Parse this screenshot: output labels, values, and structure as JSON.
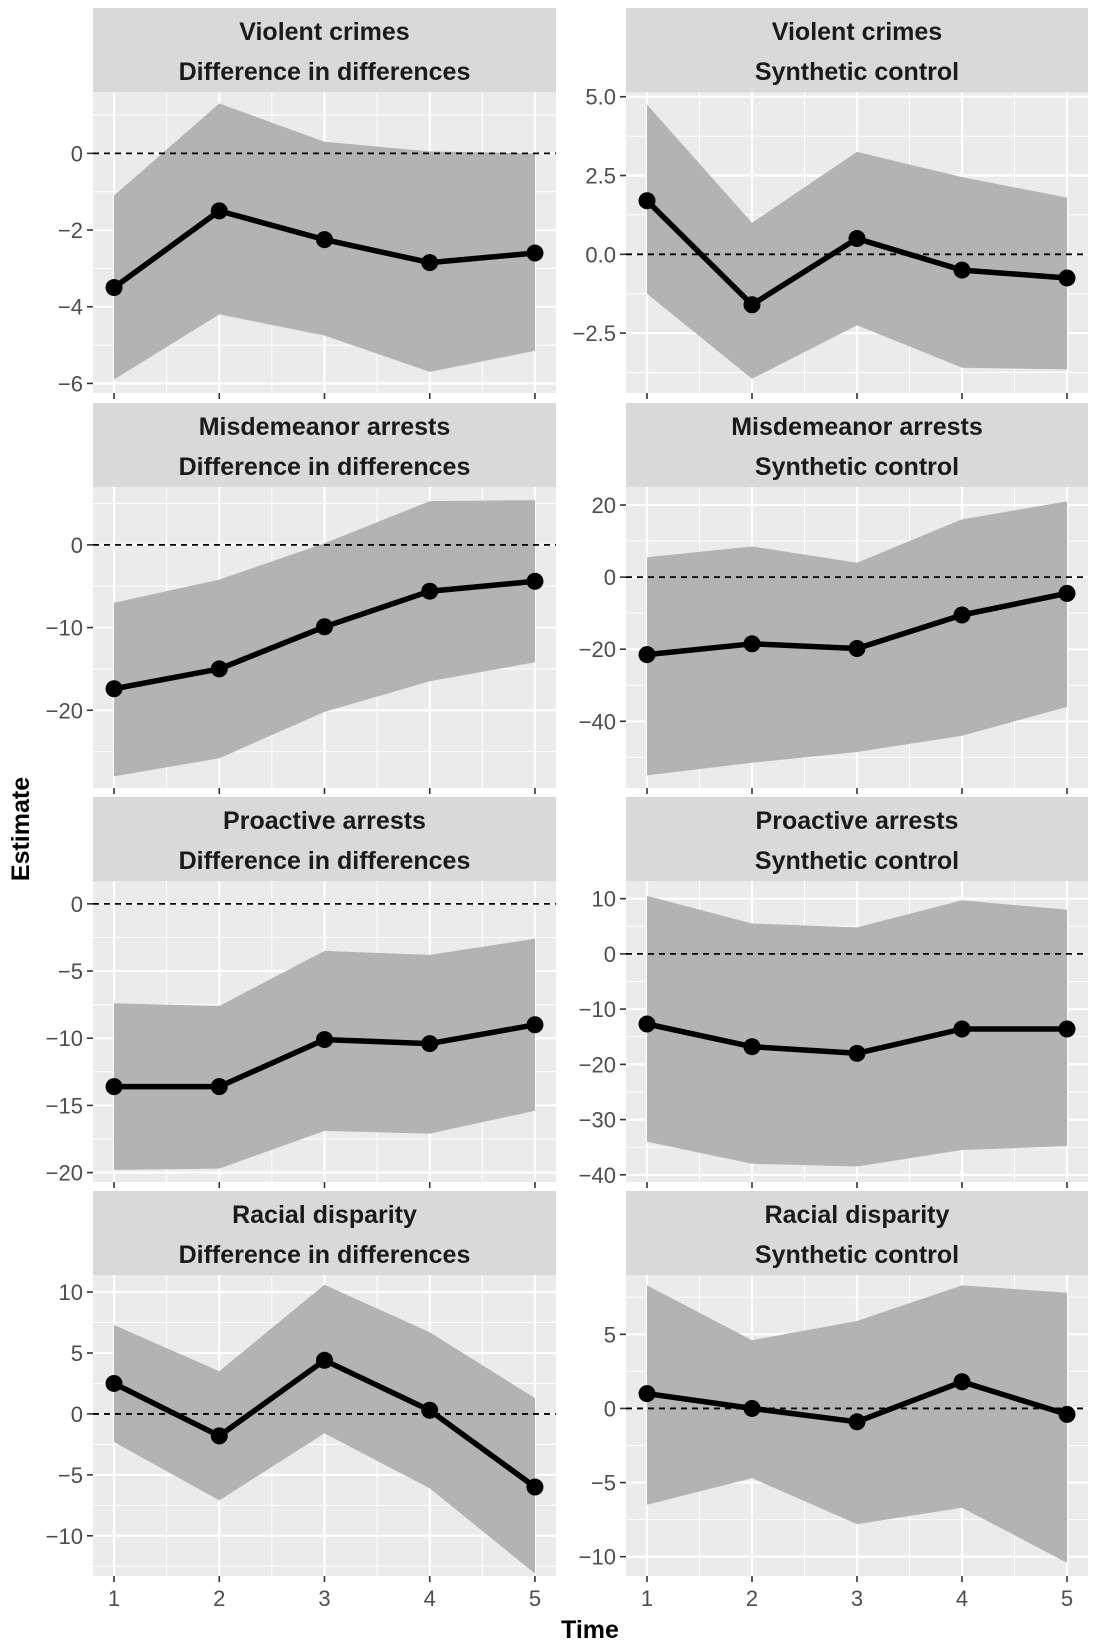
{
  "figure": {
    "xlabel": "Time",
    "ylabel": "Estimate"
  },
  "chart_data": [
    {
      "type": "line",
      "title": "Violent crimes",
      "subtitle": "Difference in differences",
      "x": [
        1,
        2,
        3,
        4,
        5
      ],
      "estimate": [
        -3.5,
        -1.5,
        -2.25,
        -2.85,
        -2.6
      ],
      "ci_lower": [
        -5.9,
        -4.2,
        -4.75,
        -5.7,
        -5.15
      ],
      "ci_upper": [
        -1.1,
        1.3,
        0.3,
        0.05,
        0.0
      ],
      "ylim": [
        -6.25,
        1.6
      ],
      "yticks": [
        0,
        -2,
        -4,
        -6
      ],
      "ytick_labels": [
        "0",
        "−2",
        "−4",
        "−6"
      ],
      "reference_line": 0
    },
    {
      "type": "line",
      "title": "Violent crimes",
      "subtitle": "Synthetic control",
      "x": [
        1,
        2,
        3,
        4,
        5
      ],
      "estimate": [
        1.7,
        -1.6,
        0.5,
        -0.5,
        -0.75
      ],
      "ci_lower": [
        -1.25,
        -3.95,
        -2.25,
        -3.6,
        -3.65
      ],
      "ci_upper": [
        4.75,
        1.0,
        3.25,
        2.45,
        1.8
      ],
      "ylim": [
        -4.4,
        5.15
      ],
      "yticks": [
        5.0,
        2.5,
        0.0,
        -2.5
      ],
      "ytick_labels": [
        "5.0",
        "2.5",
        "0.0",
        "−2.5"
      ],
      "reference_line": 0
    },
    {
      "type": "line",
      "title": "Misdemeanor arrests",
      "subtitle": "Difference in differences",
      "x": [
        1,
        2,
        3,
        4,
        5
      ],
      "estimate": [
        -17.4,
        -15.0,
        -9.9,
        -5.6,
        -4.4
      ],
      "ci_lower": [
        -28.0,
        -25.8,
        -20.2,
        -16.5,
        -14.2
      ],
      "ci_upper": [
        -7.0,
        -4.2,
        0.2,
        5.3,
        5.4
      ],
      "ylim": [
        -29.4,
        7.0
      ],
      "yticks": [
        0,
        -10,
        -20
      ],
      "ytick_labels": [
        "0",
        "−10",
        "−20"
      ],
      "reference_line": 0
    },
    {
      "type": "line",
      "title": "Misdemeanor arrests",
      "subtitle": "Synthetic control",
      "x": [
        1,
        2,
        3,
        4,
        5
      ],
      "estimate": [
        -21.5,
        -18.5,
        -19.8,
        -10.5,
        -4.5
      ],
      "ci_lower": [
        -55.0,
        -51.5,
        -48.5,
        -44.0,
        -36.0
      ],
      "ci_upper": [
        5.5,
        8.5,
        4.0,
        16.0,
        21.0
      ],
      "ylim": [
        -58.5,
        25.0
      ],
      "yticks": [
        20,
        0,
        -20,
        -40
      ],
      "ytick_labels": [
        "20",
        "0",
        "−20",
        "−40"
      ],
      "reference_line": 0
    },
    {
      "type": "line",
      "title": "Proactive arrests",
      "subtitle": "Difference in differences",
      "x": [
        1,
        2,
        3,
        4,
        5
      ],
      "estimate": [
        -13.6,
        -13.6,
        -10.1,
        -10.4,
        -9.0
      ],
      "ci_lower": [
        -19.8,
        -19.7,
        -16.9,
        -17.1,
        -15.4
      ],
      "ci_upper": [
        -7.4,
        -7.6,
        -3.5,
        -3.8,
        -2.6
      ],
      "ylim": [
        -20.7,
        1.7
      ],
      "yticks": [
        0,
        -5,
        -10,
        -15,
        -20
      ],
      "ytick_labels": [
        "0",
        "−5",
        "−10",
        "−15",
        "−20"
      ],
      "reference_line": 0
    },
    {
      "type": "line",
      "title": "Proactive arrests",
      "subtitle": "Synthetic control",
      "x": [
        1,
        2,
        3,
        4,
        5
      ],
      "estimate": [
        -12.7,
        -16.8,
        -18.0,
        -13.6,
        -13.6
      ],
      "ci_lower": [
        -34.0,
        -38.0,
        -38.5,
        -35.5,
        -34.8
      ],
      "ci_upper": [
        10.5,
        5.5,
        4.8,
        9.7,
        8.0
      ],
      "ylim": [
        -41.3,
        13.2
      ],
      "yticks": [
        10,
        0,
        -10,
        -20,
        -30,
        -40
      ],
      "ytick_labels": [
        "10",
        "0",
        "−10",
        "−20",
        "−30",
        "−40"
      ],
      "reference_line": 0
    },
    {
      "type": "line",
      "title": "Racial disparity",
      "subtitle": "Difference in differences",
      "x": [
        1,
        2,
        3,
        4,
        5
      ],
      "estimate": [
        2.5,
        -1.8,
        4.4,
        0.3,
        -6.0
      ],
      "ci_lower": [
        -2.3,
        -7.1,
        -1.6,
        -6.1,
        -13.1
      ],
      "ci_upper": [
        7.3,
        3.5,
        10.6,
        6.7,
        1.3
      ],
      "ylim": [
        -13.3,
        11.4
      ],
      "yticks": [
        10,
        5,
        0,
        -5,
        -10
      ],
      "ytick_labels": [
        "10",
        "5",
        "0",
        "−5",
        "−10"
      ],
      "reference_line": 0
    },
    {
      "type": "line",
      "title": "Racial disparity",
      "subtitle": "Synthetic control",
      "x": [
        1,
        2,
        3,
        4,
        5
      ],
      "estimate": [
        1.0,
        0.0,
        -0.9,
        1.8,
        -0.4
      ],
      "ci_lower": [
        -6.5,
        -4.7,
        -7.8,
        -6.7,
        -10.4
      ],
      "ci_upper": [
        8.3,
        4.6,
        5.9,
        8.3,
        7.8
      ],
      "ylim": [
        -11.3,
        9.0
      ],
      "yticks": [
        5,
        0,
        -5,
        -10
      ],
      "ytick_labels": [
        "5",
        "0",
        "−5",
        "−10"
      ],
      "reference_line": 0
    }
  ],
  "xticks": [
    1,
    2,
    3,
    4,
    5
  ],
  "xtick_labels": [
    "1",
    "2",
    "3",
    "4",
    "5"
  ],
  "colors": {
    "panel_background": "#ebebeb",
    "strip_background": "#d9d9d9",
    "ribbon": "#b3b3b3",
    "line": "#000000",
    "grid": "#ffffff"
  }
}
